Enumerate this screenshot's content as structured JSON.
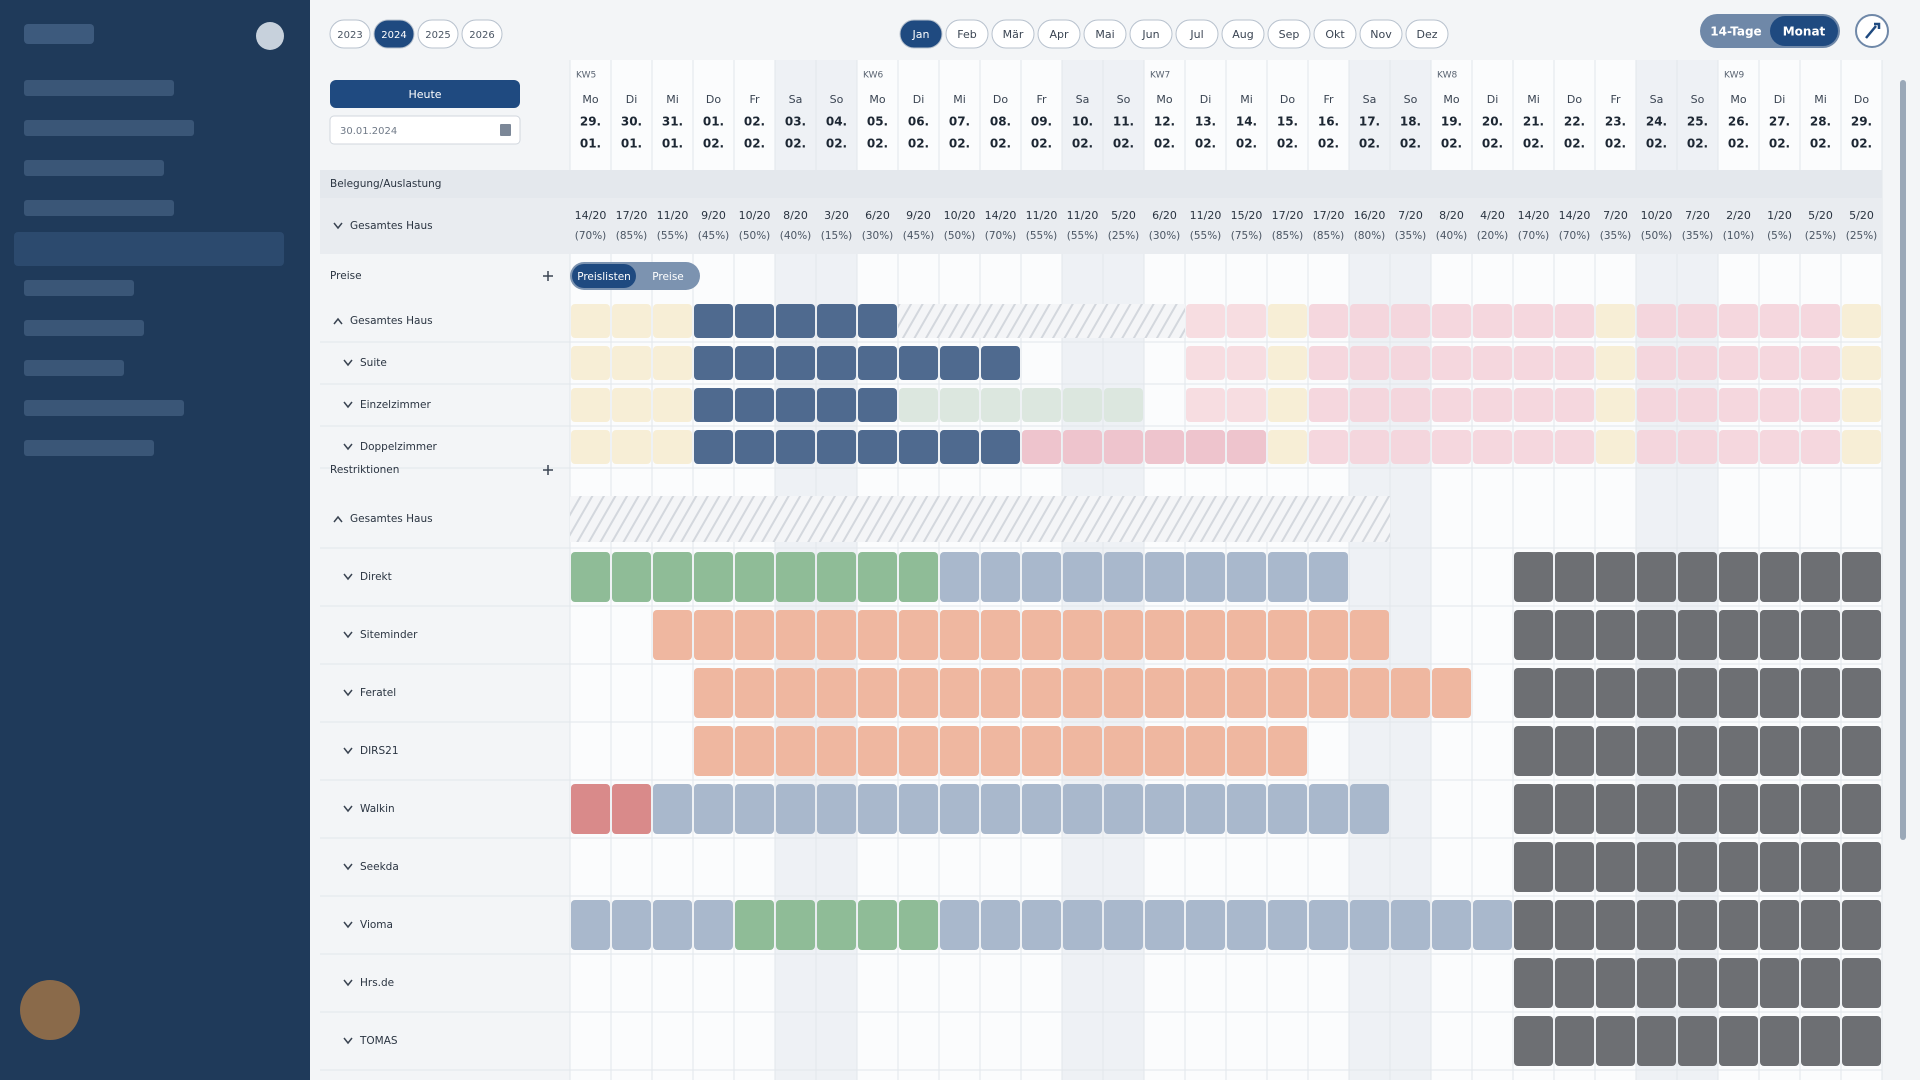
{
  "toolbar": {
    "years": [
      "2023",
      "2024",
      "2025",
      "2026"
    ],
    "selected_year": "2024",
    "months": [
      "Jan",
      "Feb",
      "Mär",
      "Apr",
      "Mai",
      "Jun",
      "Jul",
      "Aug",
      "Sep",
      "Okt",
      "Nov",
      "Dez"
    ],
    "selected_month": "Jan",
    "views": [
      "14-Tage",
      "Monat"
    ],
    "selected_view": "Monat",
    "today_button": "Heute",
    "date_input": "30.01.2024"
  },
  "calendar": {
    "weeks": [
      "KW5",
      "KW6",
      "KW7",
      "KW8",
      "KW9"
    ],
    "weekdays": [
      "Mo",
      "Di",
      "Mi",
      "Do",
      "Fr",
      "Sa",
      "So",
      "Mo",
      "Di",
      "Mi",
      "Do",
      "Fr",
      "Sa",
      "So",
      "Mo",
      "Di",
      "Mi",
      "Do",
      "Fr",
      "Sa",
      "So",
      "Mo",
      "Di",
      "Mi",
      "Do",
      "Fr",
      "Sa",
      "So",
      "Mo",
      "Di",
      "Mi",
      "Do"
    ],
    "dates": [
      "29.",
      "30.",
      "31.",
      "01.",
      "02.",
      "03.",
      "04.",
      "05.",
      "06.",
      "07.",
      "08.",
      "09.",
      "10.",
      "11.",
      "12.",
      "13.",
      "14.",
      "15.",
      "16.",
      "17.",
      "18.",
      "19.",
      "20.",
      "21.",
      "22.",
      "23.",
      "24.",
      "25.",
      "26.",
      "27.",
      "28.",
      "29."
    ],
    "months": [
      "01.",
      "01.",
      "01.",
      "02.",
      "02.",
      "02.",
      "02.",
      "02.",
      "02.",
      "02.",
      "02.",
      "02.",
      "02.",
      "02.",
      "02.",
      "02.",
      "02.",
      "02.",
      "02.",
      "02.",
      "02.",
      "02.",
      "02.",
      "02.",
      "02.",
      "02.",
      "02.",
      "02.",
      "02.",
      "02.",
      "02.",
      "02."
    ]
  },
  "occupancy": {
    "section": "Belegung/Auslastung",
    "row_label": "Gesamtes Haus",
    "counts": [
      "14/20",
      "17/20",
      "11/20",
      "9/20",
      "10/20",
      "8/20",
      "3/20",
      "6/20",
      "9/20",
      "10/20",
      "14/20",
      "11/20",
      "11/20",
      "5/20",
      "6/20",
      "11/20",
      "15/20",
      "17/20",
      "17/20",
      "16/20",
      "7/20",
      "8/20",
      "4/20",
      "14/20",
      "14/20",
      "7/20",
      "10/20",
      "7/20",
      "2/20",
      "1/20",
      "5/20",
      "5/20"
    ],
    "percents": [
      "(70%)",
      "(85%)",
      "(55%)",
      "(45%)",
      "(50%)",
      "(40%)",
      "(15%)",
      "(30%)",
      "(45%)",
      "(50%)",
      "(70%)",
      "(55%)",
      "(55%)",
      "(25%)",
      "(30%)",
      "(55%)",
      "(75%)",
      "(85%)",
      "(85%)",
      "(80%)",
      "(35%)",
      "(40%)",
      "(20%)",
      "(70%)",
      "(70%)",
      "(35%)",
      "(50%)",
      "(35%)",
      "(10%)",
      "(5%)",
      "(25%)",
      "(25%)"
    ]
  },
  "prices": {
    "section": "Preise",
    "tabs": [
      "Preislisten",
      "Preise"
    ],
    "selected_tab": "Preislisten",
    "rows": [
      "Gesamtes Haus",
      "Suite",
      "Einzelzimmer",
      "Doppelzimmer"
    ]
  },
  "restrictions": {
    "section": "Restriktionen",
    "rows": [
      "Gesamtes Haus",
      "Direkt",
      "Siteminder",
      "Feratel",
      "DIRS21",
      "Walkin",
      "Seekda",
      "Vioma",
      "Hrs.de",
      "TOMAS"
    ]
  }
}
